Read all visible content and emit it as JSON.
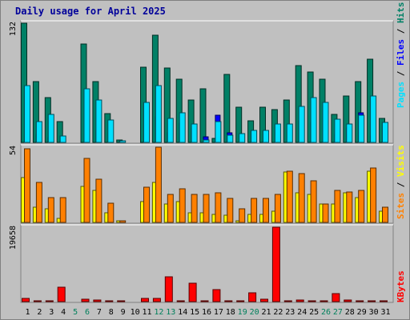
{
  "title": "Daily usage for April 2025",
  "colors": {
    "hits": "#008066",
    "files": "#0000ff",
    "pages": "#00e0ff",
    "visits": "#ffff00",
    "sites": "#ff8000",
    "kbytes": "#ff0000",
    "weekend": "#00805c",
    "day": "#000000"
  },
  "chart_data": [
    {
      "type": "bar",
      "title": "Daily usage for April 2025",
      "ymax_label": "132",
      "ylim": [
        0,
        132
      ],
      "categories": [
        "1",
        "2",
        "3",
        "4",
        "5",
        "6",
        "7",
        "8",
        "9",
        "10",
        "11",
        "12",
        "13",
        "14",
        "15",
        "16",
        "17",
        "18",
        "19",
        "20",
        "21",
        "22",
        "23",
        "24",
        "25",
        "26",
        "27",
        "28",
        "29",
        "30",
        "31"
      ],
      "series": [
        {
          "name": "Hits",
          "values": [
            132,
            67,
            50,
            23,
            0,
            109,
            67,
            32,
            3,
            0,
            83,
            119,
            82,
            70,
            47,
            59,
            4,
            75,
            39,
            24,
            39,
            36,
            47,
            85,
            78,
            70,
            31,
            51,
            67,
            92,
            27
          ]
        },
        {
          "name": "Files",
          "values": [
            14,
            9,
            5,
            7,
            0,
            16,
            13,
            0,
            2,
            0,
            0,
            28,
            11,
            21,
            15,
            6,
            30,
            11,
            0,
            13,
            0,
            0,
            0,
            24,
            22,
            20,
            9,
            16,
            33,
            7,
            6
          ]
        },
        {
          "name": "Pages",
          "values": [
            63,
            23,
            31,
            7,
            0,
            59,
            47,
            25,
            2,
            0,
            44,
            63,
            27,
            33,
            20,
            3,
            23,
            8,
            10,
            13,
            13,
            20,
            20,
            40,
            50,
            44,
            26,
            20,
            30,
            51,
            22
          ]
        }
      ],
      "legend": [
        "Pages",
        "Files",
        "Hits"
      ]
    },
    {
      "type": "bar",
      "ymax_label": "54",
      "ylim": [
        0,
        54
      ],
      "categories": [
        "1",
        "2",
        "3",
        "4",
        "5",
        "6",
        "7",
        "8",
        "9",
        "10",
        "11",
        "12",
        "13",
        "14",
        "15",
        "16",
        "17",
        "18",
        "19",
        "20",
        "21",
        "22",
        "23",
        "24",
        "25",
        "26",
        "27",
        "28",
        "29",
        "30",
        "31"
      ],
      "series": [
        {
          "name": "Visits",
          "values": [
            32,
            11,
            10,
            3,
            0,
            26,
            23,
            7,
            1,
            0,
            15,
            29,
            13,
            15,
            7,
            7,
            6,
            5,
            1,
            6,
            6,
            8,
            36,
            21,
            20,
            13,
            13,
            21,
            18,
            37,
            8
          ]
        },
        {
          "name": "Sites",
          "values": [
            53,
            29,
            18,
            18,
            0,
            46,
            31,
            14,
            1,
            0,
            25,
            54,
            20,
            24,
            20,
            20,
            21,
            17,
            10,
            17,
            17,
            20,
            37,
            35,
            30,
            13,
            23,
            22,
            23,
            39,
            11
          ]
        }
      ],
      "legend": [
        "Sites",
        "Visits"
      ]
    },
    {
      "type": "bar",
      "ymax_label": "19658",
      "ylim": [
        0,
        19658
      ],
      "categories": [
        "1",
        "2",
        "3",
        "4",
        "5",
        "6",
        "7",
        "8",
        "9",
        "10",
        "11",
        "12",
        "13",
        "14",
        "15",
        "16",
        "17",
        "18",
        "19",
        "20",
        "21",
        "22",
        "23",
        "24",
        "25",
        "26",
        "27",
        "28",
        "29",
        "30",
        "31"
      ],
      "series": [
        {
          "name": "KBytes",
          "values": [
            900,
            120,
            120,
            3800,
            0,
            600,
            350,
            250,
            120,
            0,
            800,
            900,
            6500,
            250,
            4900,
            300,
            3200,
            250,
            250,
            2400,
            700,
            19658,
            250,
            450,
            250,
            250,
            2100,
            400,
            200,
            150,
            50
          ]
        }
      ],
      "legend": [
        "KBytes"
      ]
    }
  ],
  "weekend_days": [
    "5",
    "6",
    "12",
    "13",
    "19",
    "20",
    "26",
    "27"
  ]
}
